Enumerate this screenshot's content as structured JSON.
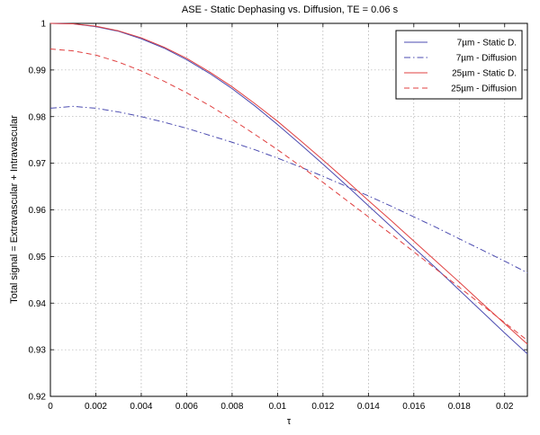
{
  "chart_data": {
    "type": "line",
    "title": "ASE - Static Dephasing vs. Diffusion, TE = 0.06 s",
    "xlabel": "τ",
    "ylabel": "Total signal = Extravascular + Intravascular",
    "xlim": [
      0,
      0.021
    ],
    "ylim": [
      0.92,
      1
    ],
    "xticks": [
      0,
      0.002,
      0.004,
      0.006,
      0.008,
      0.01,
      0.012,
      0.014,
      0.016,
      0.018,
      0.02
    ],
    "xtick_labels": [
      "0",
      "0.002",
      "0.004",
      "0.006",
      "0.008",
      "0.01",
      "0.012",
      "0.014",
      "0.016",
      "0.018",
      "0.02"
    ],
    "yticks": [
      0.92,
      0.93,
      0.94,
      0.95,
      0.96,
      0.97,
      0.98,
      0.99,
      1
    ],
    "ytick_labels": [
      "0.92",
      "0.93",
      "0.94",
      "0.95",
      "0.96",
      "0.97",
      "0.98",
      "0.99",
      "1"
    ],
    "grid": true,
    "legend_position": "top-right",
    "series": [
      {
        "name": "7µm - Static D.",
        "color": "#4b4bb0",
        "style": "solid",
        "x": [
          0,
          0.001,
          0.002,
          0.003,
          0.004,
          0.005,
          0.006,
          0.007,
          0.008,
          0.009,
          0.01,
          0.011,
          0.012,
          0.013,
          0.014,
          0.015,
          0.016,
          0.017,
          0.018,
          0.019,
          0.02,
          0.021
        ],
        "y": [
          1.0,
          0.9999,
          0.9993,
          0.9983,
          0.9967,
          0.9947,
          0.9922,
          0.9893,
          0.986,
          0.9823,
          0.9783,
          0.9741,
          0.9698,
          0.9654,
          0.9609,
          0.9564,
          0.9519,
          0.9474,
          0.9428,
          0.9382,
          0.9336,
          0.9291
        ]
      },
      {
        "name": "7µm - Diffusion",
        "color": "#4b4bb0",
        "style": "dashdot",
        "x": [
          0,
          0.001,
          0.002,
          0.003,
          0.004,
          0.005,
          0.006,
          0.007,
          0.008,
          0.009,
          0.01,
          0.011,
          0.012,
          0.013,
          0.014,
          0.015,
          0.016,
          0.017,
          0.018,
          0.019,
          0.02,
          0.021
        ],
        "y": [
          0.9818,
          0.9822,
          0.9818,
          0.981,
          0.98,
          0.9788,
          0.9775,
          0.976,
          0.9745,
          0.9729,
          0.9711,
          0.9692,
          0.9672,
          0.9651,
          0.963,
          0.9608,
          0.9585,
          0.9562,
          0.9538,
          0.9514,
          0.949,
          0.9465
        ]
      },
      {
        "name": "25µm - Static D.",
        "color": "#e04040",
        "style": "solid",
        "x": [
          0,
          0.001,
          0.002,
          0.003,
          0.004,
          0.005,
          0.006,
          0.007,
          0.008,
          0.009,
          0.01,
          0.011,
          0.012,
          0.013,
          0.014,
          0.015,
          0.016,
          0.017,
          0.018,
          0.019,
          0.02,
          0.021
        ],
        "y": [
          1.0,
          0.9999,
          0.9994,
          0.9984,
          0.9969,
          0.9949,
          0.9925,
          0.9896,
          0.9864,
          0.9828,
          0.979,
          0.9749,
          0.9707,
          0.9664,
          0.962,
          0.9577,
          0.9533,
          0.9489,
          0.9445,
          0.94,
          0.9356,
          0.9312
        ]
      },
      {
        "name": "25µm - Diffusion",
        "color": "#e04040",
        "style": "dashed",
        "x": [
          0,
          0.001,
          0.002,
          0.003,
          0.004,
          0.005,
          0.006,
          0.007,
          0.008,
          0.009,
          0.01,
          0.011,
          0.012,
          0.013,
          0.014,
          0.015,
          0.016,
          0.017,
          0.018,
          0.019,
          0.02,
          0.021
        ],
        "y": [
          0.9945,
          0.9941,
          0.9932,
          0.9917,
          0.9898,
          0.9876,
          0.9851,
          0.9824,
          0.9794,
          0.9762,
          0.9729,
          0.9694,
          0.9659,
          0.9622,
          0.9585,
          0.9548,
          0.951,
          0.9472,
          0.9434,
          0.9396,
          0.9358,
          0.932
        ]
      }
    ]
  }
}
